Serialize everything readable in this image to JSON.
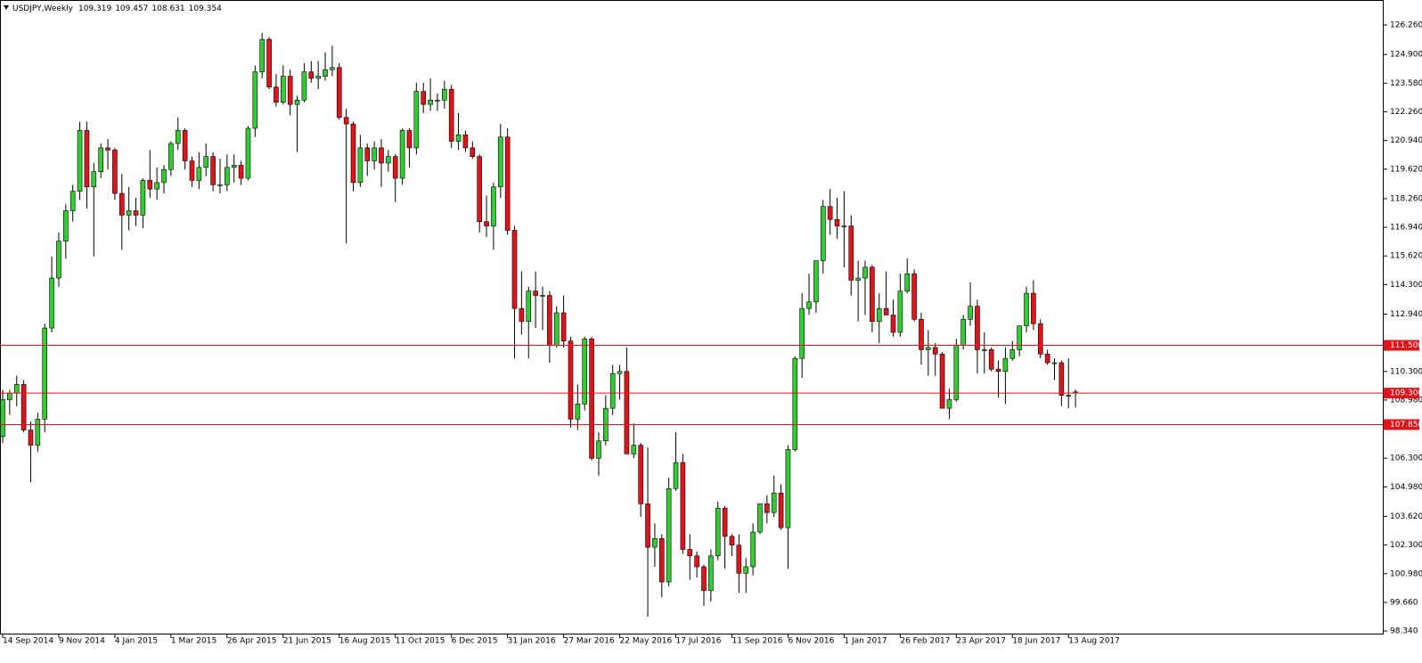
{
  "chart_data": {
    "type": "candlestick",
    "symbol": "USDJPY,Weekly",
    "up_color": "#32cd32",
    "down_color": "#e0141b",
    "level_color": "#e0141b",
    "categories": [
      "14 Sep 2014",
      null,
      null,
      null,
      null,
      null,
      null,
      null,
      "9 Nov 2014",
      null,
      null,
      null,
      null,
      null,
      null,
      null,
      "4 Jan 2015",
      null,
      null,
      null,
      null,
      null,
      null,
      null,
      "1 Mar 2015",
      null,
      null,
      null,
      null,
      null,
      null,
      null,
      "26 Apr 2015",
      null,
      null,
      null,
      null,
      null,
      null,
      null,
      "21 Jun 2015",
      null,
      null,
      null,
      null,
      null,
      null,
      null,
      "16 Aug 2015",
      null,
      null,
      null,
      null,
      null,
      null,
      null,
      "11 Oct 2015",
      null,
      null,
      null,
      null,
      null,
      null,
      null,
      "6 Dec 2015",
      null,
      null,
      null,
      null,
      null,
      null,
      null,
      "31 Jan 2016",
      null,
      null,
      null,
      null,
      null,
      null,
      null,
      "27 Mar 2016",
      null,
      null,
      null,
      null,
      null,
      null,
      null,
      "22 May 2016",
      null,
      null,
      null,
      null,
      null,
      null,
      null,
      "17 Jul 2016",
      null,
      null,
      null,
      null,
      null,
      null,
      null,
      "11 Sep 2016",
      null,
      null,
      null,
      null,
      null,
      null,
      null,
      "6 Nov 2016",
      null,
      null,
      null,
      null,
      null,
      null,
      null,
      "1 Jan 2017",
      null,
      null,
      null,
      null,
      null,
      null,
      null,
      "26 Feb 2017",
      null,
      null,
      null,
      null,
      null,
      null,
      null,
      "23 Apr 2017",
      null,
      null,
      null,
      null,
      null,
      null,
      null,
      "18 Jun 2017",
      null,
      null,
      null,
      null,
      null,
      null,
      null,
      "13 Aug 2017",
      null
    ],
    "open": [
      107.3,
      109.0,
      109.3,
      109.7,
      107.6,
      106.9,
      108.1,
      112.3,
      114.6,
      116.3,
      117.7,
      118.6,
      121.4,
      118.8,
      119.5,
      120.6,
      120.5,
      118.5,
      117.5,
      117.7,
      117.5,
      119.1,
      118.7,
      119.0,
      119.6,
      120.8,
      121.4,
      120.0,
      119.1,
      119.7,
      120.2,
      118.9,
      118.9,
      119.7,
      119.8,
      119.2,
      121.5,
      124.1,
      125.6,
      123.4,
      122.7,
      123.9,
      122.6,
      122.8,
      124.1,
      123.8,
      123.9,
      124.2,
      124.3,
      122.0,
      121.7,
      119.0,
      120.6,
      120.0,
      120.6,
      119.9,
      120.2,
      119.2,
      121.4,
      120.6,
      123.2,
      122.6,
      122.8,
      122.8,
      123.3,
      120.9,
      121.2,
      120.6,
      120.2,
      117.2,
      117.0,
      118.8,
      121.1,
      116.8,
      113.2,
      112.6,
      114.0,
      113.8,
      113.8,
      111.5,
      113.0,
      111.7,
      108.1,
      108.8,
      111.8,
      106.3,
      107.1,
      108.6,
      110.2,
      110.3,
      106.5,
      106.9,
      104.2,
      102.2,
      102.6,
      100.6,
      104.9,
      106.1,
      102.1,
      101.8,
      101.3,
      100.2,
      101.8,
      104.0,
      102.7,
      102.3,
      101.0,
      101.3,
      102.9,
      104.2,
      103.8,
      104.7,
      103.1,
      106.7,
      110.9,
      113.2,
      113.5,
      115.4,
      117.9,
      117.3,
      117.0,
      117.0,
      114.5,
      114.6,
      115.1,
      112.6,
      113.2,
      112.9,
      112.1,
      114.0,
      114.8,
      112.7,
      111.3,
      111.4,
      111.1,
      108.6,
      109.0,
      111.5,
      112.7,
      113.3,
      111.3,
      111.3,
      110.4,
      110.3,
      110.9,
      111.3,
      112.4,
      113.9,
      112.5,
      111.1,
      110.7,
      110.7,
      109.2,
      109.319
    ],
    "high": [
      109.45,
      109.45,
      110.1,
      109.9,
      108.0,
      108.4,
      112.5,
      115.6,
      116.7,
      118.0,
      118.9,
      121.8,
      121.8,
      119.9,
      120.8,
      121.0,
      120.6,
      119.4,
      118.8,
      118.3,
      119.2,
      120.5,
      119.7,
      119.8,
      120.9,
      122.0,
      121.5,
      120.2,
      120.4,
      120.8,
      120.4,
      120.1,
      120.3,
      120.3,
      120.0,
      121.6,
      124.4,
      125.9,
      125.7,
      124.0,
      124.4,
      124.2,
      123.0,
      124.5,
      124.6,
      124.6,
      125.0,
      125.3,
      124.5,
      122.4,
      121.8,
      121.2,
      120.8,
      120.9,
      121.0,
      120.5,
      120.3,
      121.5,
      121.5,
      123.6,
      123.6,
      123.8,
      123.1,
      123.7,
      123.5,
      122.2,
      121.4,
      120.9,
      120.3,
      118.4,
      119.0,
      121.7,
      121.5,
      117.0,
      114.9,
      114.2,
      114.9,
      114.2,
      114.0,
      113.3,
      113.8,
      111.9,
      109.7,
      111.9,
      111.9,
      107.5,
      109.2,
      110.6,
      110.6,
      111.4,
      107.9,
      107.0,
      106.8,
      103.3,
      102.8,
      105.4,
      107.5,
      106.5,
      102.8,
      102.0,
      101.4,
      102.1,
      104.3,
      104.1,
      102.8,
      102.8,
      101.7,
      103.3,
      104.2,
      104.6,
      105.5,
      105.1,
      106.9,
      111.0,
      113.9,
      114.8,
      115.4,
      118.2,
      118.7,
      118.3,
      118.6,
      117.5,
      115.4,
      115.4,
      115.2,
      113.9,
      114.9,
      113.6,
      114.8,
      115.5,
      115.0,
      113.0,
      112.2,
      111.6,
      111.2,
      109.5,
      111.8,
      112.9,
      114.4,
      113.6,
      112.1,
      111.4,
      110.8,
      111.4,
      111.7,
      112.4,
      114.2,
      114.5,
      112.7,
      111.3,
      110.9,
      110.8,
      110.9,
      109.457
    ],
    "low": [
      107.0,
      108.3,
      108.7,
      107.5,
      105.2,
      106.6,
      107.5,
      112.1,
      114.2,
      115.5,
      117.2,
      118.2,
      117.8,
      115.6,
      119.2,
      119.6,
      118.2,
      115.9,
      116.8,
      117.0,
      116.9,
      118.3,
      118.2,
      118.5,
      119.3,
      120.5,
      119.6,
      118.8,
      118.7,
      119.3,
      118.6,
      118.5,
      118.6,
      119.0,
      118.9,
      119.1,
      121.1,
      123.8,
      123.3,
      122.5,
      122.6,
      122.1,
      120.4,
      122.7,
      123.6,
      123.3,
      123.7,
      123.9,
      121.9,
      116.2,
      118.6,
      118.8,
      119.3,
      119.6,
      118.8,
      119.5,
      118.1,
      118.9,
      119.7,
      120.3,
      122.2,
      122.3,
      122.3,
      122.4,
      120.6,
      120.5,
      120.4,
      120.1,
      116.7,
      116.5,
      115.9,
      118.3,
      116.6,
      110.9,
      112.0,
      110.9,
      112.3,
      112.2,
      110.7,
      111.4,
      111.4,
      107.7,
      107.6,
      108.5,
      106.2,
      105.5,
      106.9,
      108.3,
      109.0,
      106.5,
      106.3,
      103.6,
      99.0,
      101.3,
      99.9,
      100.4,
      104.8,
      101.9,
      100.7,
      100.8,
      99.5,
      99.7,
      101.6,
      101.2,
      101.8,
      100.1,
      100.1,
      100.9,
      102.8,
      103.3,
      103.6,
      103.0,
      101.2,
      106.6,
      110.0,
      112.9,
      113.0,
      114.8,
      116.6,
      116.4,
      115.1,
      113.8,
      112.6,
      112.9,
      112.1,
      111.6,
      112.9,
      111.9,
      111.9,
      113.9,
      112.6,
      110.6,
      110.1,
      110.1,
      108.6,
      108.1,
      108.9,
      111.3,
      112.4,
      110.2,
      110.2,
      110.3,
      109.1,
      108.8,
      110.8,
      111.0,
      112.1,
      112.2,
      110.9,
      110.6,
      109.9,
      108.7,
      108.6,
      108.631
    ],
    "close": [
      109.0,
      109.3,
      109.7,
      107.6,
      106.9,
      108.1,
      112.3,
      114.6,
      116.3,
      117.7,
      118.6,
      121.4,
      118.8,
      119.5,
      120.6,
      120.5,
      118.5,
      117.5,
      117.7,
      117.5,
      119.1,
      118.7,
      119.0,
      119.6,
      120.8,
      121.4,
      120.0,
      119.1,
      119.7,
      120.2,
      118.9,
      118.9,
      119.7,
      119.8,
      119.2,
      121.5,
      124.1,
      125.6,
      123.4,
      122.7,
      123.9,
      122.6,
      122.8,
      124.1,
      123.8,
      123.9,
      124.2,
      124.3,
      122.0,
      121.7,
      119.0,
      120.6,
      120.0,
      120.6,
      119.9,
      120.2,
      119.2,
      121.4,
      120.6,
      123.2,
      122.6,
      122.8,
      122.8,
      123.3,
      120.9,
      121.2,
      120.6,
      120.2,
      117.2,
      117.0,
      118.8,
      121.1,
      116.8,
      113.2,
      112.6,
      114.0,
      113.8,
      113.8,
      111.5,
      113.0,
      111.7,
      108.1,
      108.8,
      111.8,
      106.3,
      107.1,
      108.6,
      110.2,
      110.3,
      106.5,
      106.9,
      104.2,
      102.2,
      102.6,
      100.6,
      104.9,
      106.1,
      102.1,
      101.8,
      101.3,
      100.2,
      101.8,
      104.0,
      102.7,
      102.3,
      101.0,
      101.3,
      102.9,
      104.2,
      103.8,
      104.7,
      103.1,
      106.7,
      110.9,
      113.2,
      113.5,
      115.4,
      117.9,
      117.3,
      117.0,
      117.0,
      114.5,
      114.6,
      115.1,
      112.6,
      113.2,
      112.9,
      112.1,
      114.0,
      114.8,
      112.7,
      111.3,
      111.4,
      111.1,
      108.6,
      109.0,
      111.5,
      112.7,
      113.3,
      111.3,
      111.3,
      110.4,
      110.3,
      110.9,
      111.3,
      112.4,
      113.9,
      112.5,
      111.1,
      110.7,
      110.7,
      109.2,
      109.2,
      109.354
    ],
    "levels": [
      {
        "value": 111.5,
        "label": "111.500"
      },
      {
        "value": 109.3,
        "label": "109.300"
      },
      {
        "value": 107.85,
        "label": "107.850"
      }
    ],
    "ylim": [
      98.18,
      127.37
    ],
    "yticks": [
      {
        "value": 98.34,
        "label": "98.340"
      },
      {
        "value": 99.66,
        "label": "99.660"
      },
      {
        "value": 100.98,
        "label": "100.980"
      },
      {
        "value": 102.3,
        "label": "102.300"
      },
      {
        "value": 103.62,
        "label": "103.620"
      },
      {
        "value": 104.98,
        "label": "104.980"
      },
      {
        "value": 106.3,
        "label": "106.300"
      },
      {
        "value": 108.98,
        "label": "108.980"
      },
      {
        "value": 110.3,
        "label": "110.300"
      },
      {
        "value": 112.94,
        "label": "112.940"
      },
      {
        "value": 114.3,
        "label": "114.300"
      },
      {
        "value": 115.62,
        "label": "115.620"
      },
      {
        "value": 116.94,
        "label": "116.940"
      },
      {
        "value": 118.26,
        "label": "118.260"
      },
      {
        "value": 119.62,
        "label": "119.620"
      },
      {
        "value": 120.94,
        "label": "120.940"
      },
      {
        "value": 122.26,
        "label": "122.260"
      },
      {
        "value": 123.58,
        "label": "123.580"
      },
      {
        "value": 124.9,
        "label": "124.900"
      },
      {
        "value": 126.26,
        "label": "126.260"
      }
    ],
    "grid": false
  }
}
